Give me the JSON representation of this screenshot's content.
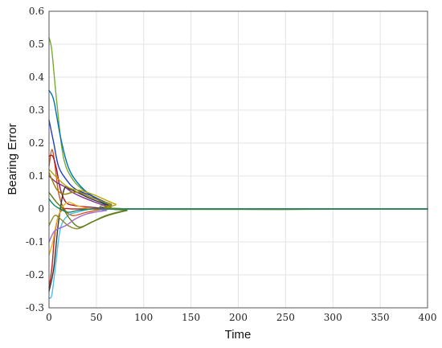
{
  "chart_data": {
    "type": "line",
    "title": "",
    "xlabel": "Time",
    "ylabel": "Bearing Error",
    "xlim": [
      0,
      400
    ],
    "ylim": [
      -0.3,
      0.6
    ],
    "xticks": [
      "0",
      "50",
      "100",
      "150",
      "200",
      "250",
      "300",
      "350",
      "400"
    ],
    "yticks": [
      "0.6",
      "0.5",
      "0.4",
      "0.3",
      "0.2",
      "0.1",
      "0",
      "-0.1",
      "-0.2",
      "-0.3"
    ],
    "grid": true,
    "series": [
      {
        "color": "#77ac30",
        "x": [
          0,
          3,
          8,
          15,
          25,
          40,
          60,
          85,
          400
        ],
        "y": [
          0.52,
          0.48,
          0.33,
          0.16,
          0.09,
          0.05,
          0.02,
          0.0,
          0.0
        ]
      },
      {
        "color": "#0072bd",
        "x": [
          0,
          5,
          12,
          20,
          30,
          45,
          65,
          90,
          400
        ],
        "y": [
          0.36,
          0.33,
          0.22,
          0.13,
          0.08,
          0.04,
          0.01,
          0.0,
          0.0
        ]
      },
      {
        "color": "#1f3fbf",
        "x": [
          0,
          5,
          10,
          18,
          28,
          45,
          65,
          90,
          400
        ],
        "y": [
          0.27,
          0.2,
          0.13,
          0.09,
          0.06,
          0.04,
          0.015,
          0.0,
          0.0
        ]
      },
      {
        "color": "#d95319",
        "x": [
          0,
          3,
          6,
          10,
          16,
          25,
          40,
          60,
          85,
          400
        ],
        "y": [
          0.13,
          0.18,
          0.14,
          0.05,
          0.0,
          -0.02,
          -0.01,
          0.0,
          0.0,
          0.0
        ]
      },
      {
        "color": "#a2142f",
        "x": [
          0,
          4,
          8,
          12,
          18,
          28,
          45,
          65,
          90,
          400
        ],
        "y": [
          0.16,
          0.16,
          0.12,
          0.06,
          0.02,
          0.01,
          0.005,
          0.0,
          0.0,
          0.0
        ]
      },
      {
        "color": "#7e2f8e",
        "x": [
          0,
          8,
          15,
          25,
          40,
          60,
          85,
          400
        ],
        "y": [
          0.1,
          0.08,
          0.07,
          0.05,
          0.03,
          0.01,
          0.0,
          0.0
        ]
      },
      {
        "color": "#333333",
        "x": [
          0,
          5,
          10,
          16,
          22,
          30,
          45,
          65,
          90,
          400
        ],
        "y": [
          -0.25,
          -0.18,
          -0.04,
          0.06,
          0.06,
          0.05,
          0.03,
          0.01,
          0.0,
          0.0
        ]
      },
      {
        "color": "#4dbeee",
        "x": [
          0,
          3,
          7,
          12,
          20,
          30,
          45,
          65,
          90,
          400
        ],
        "y": [
          -0.27,
          -0.26,
          -0.17,
          -0.06,
          -0.02,
          -0.01,
          0.0,
          0.0,
          0.0,
          0.0
        ]
      },
      {
        "color": "#c02020",
        "x": [
          0,
          3,
          6,
          10,
          16,
          25,
          40,
          60,
          85,
          400
        ],
        "y": [
          -0.24,
          -0.18,
          -0.08,
          -0.02,
          0.0,
          0.0,
          0.0,
          0.0,
          0.0,
          0.0
        ]
      },
      {
        "color": "#edb120",
        "x": [
          0,
          4,
          8,
          13,
          20,
          30,
          45,
          65,
          90,
          400
        ],
        "y": [
          -0.14,
          -0.1,
          -0.04,
          0.0,
          0.02,
          0.01,
          0.0,
          0.0,
          0.0,
          0.0
        ]
      },
      {
        "color": "#8c8c2a",
        "x": [
          0,
          6,
          12,
          20,
          30,
          42,
          60,
          80,
          95,
          400
        ],
        "y": [
          -0.05,
          -0.02,
          -0.03,
          -0.05,
          -0.06,
          -0.045,
          -0.02,
          -0.005,
          0.0,
          0.0
        ]
      },
      {
        "color": "#5a7d1a",
        "x": [
          0,
          8,
          15,
          22,
          32,
          45,
          62,
          82,
          95,
          400
        ],
        "y": [
          0.05,
          0.02,
          0.0,
          -0.03,
          -0.055,
          -0.04,
          -0.02,
          -0.005,
          0.0,
          0.0
        ]
      },
      {
        "color": "#b5a300",
        "x": [
          0,
          10,
          18,
          25,
          35,
          50,
          70,
          90,
          400
        ],
        "y": [
          0.12,
          0.09,
          0.07,
          0.06,
          0.055,
          0.04,
          0.015,
          0.0,
          0.0
        ]
      },
      {
        "color": "#9b7f00",
        "x": [
          0,
          8,
          16,
          24,
          32,
          45,
          65,
          88,
          400
        ],
        "y": [
          0.11,
          0.06,
          0.045,
          0.05,
          0.05,
          0.035,
          0.015,
          0.0,
          0.0
        ]
      },
      {
        "color": "#a06bd0",
        "x": [
          0,
          5,
          10,
          18,
          28,
          40,
          60,
          85,
          400
        ],
        "y": [
          -0.1,
          -0.07,
          -0.06,
          -0.05,
          -0.03,
          -0.015,
          -0.005,
          0.0,
          0.0
        ]
      },
      {
        "color": "#0f8a5f",
        "x": [
          0,
          6,
          12,
          20,
          30,
          45,
          65,
          85,
          400
        ],
        "y": [
          0.03,
          0.01,
          0.0,
          -0.01,
          -0.005,
          0.0,
          0.0,
          0.0,
          0.0
        ]
      }
    ]
  }
}
